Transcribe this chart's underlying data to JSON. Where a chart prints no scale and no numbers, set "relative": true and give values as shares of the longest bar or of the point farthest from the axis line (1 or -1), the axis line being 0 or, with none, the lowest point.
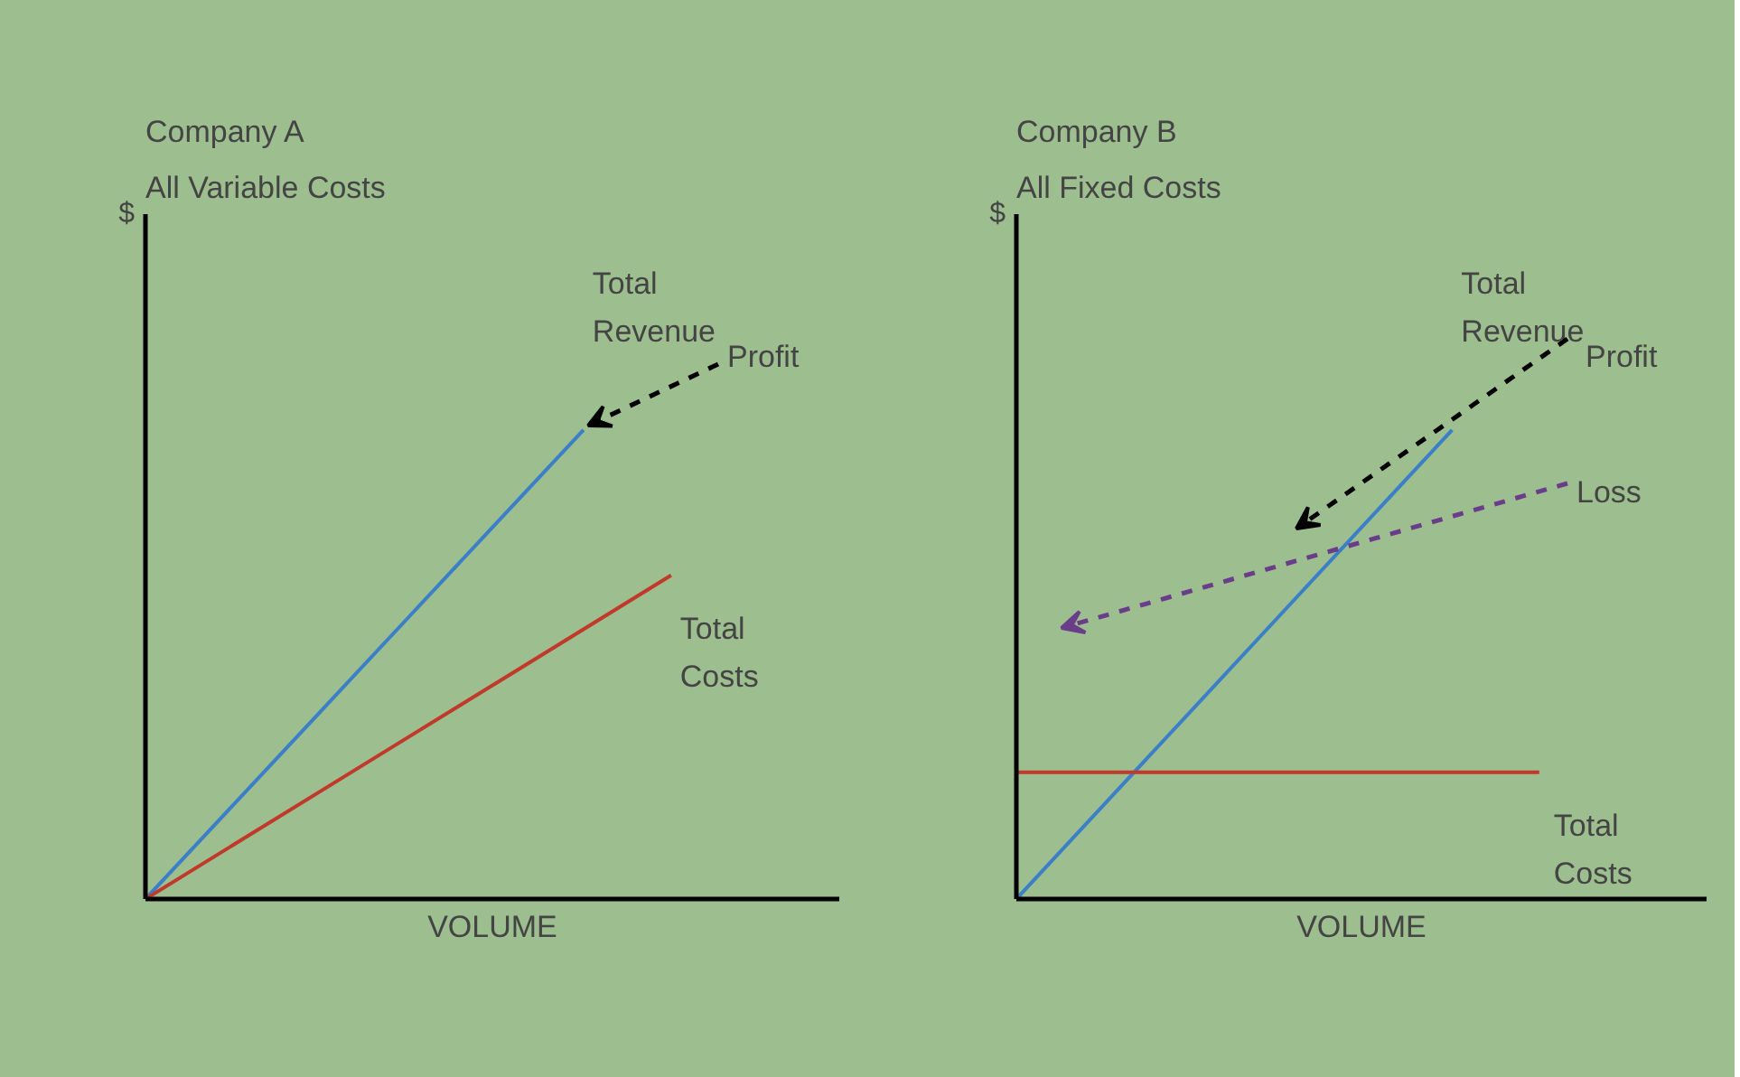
{
  "chart_data": [
    {
      "type": "line",
      "title": "Company A",
      "subtitle": "All Variable Costs",
      "xlabel": "VOLUME",
      "ylabel": "$",
      "relative": true,
      "tick_labels": false,
      "grid": false,
      "legend": false,
      "categories": [
        null,
        null,
        null,
        null,
        null,
        null,
        null
      ],
      "series": [
        {
          "name": "Total Revenue",
          "color": "#3a7fc8",
          "values": [
            0,
            0.2,
            0.4,
            0.6,
            0.8,
            1.0,
            null
          ]
        },
        {
          "name": "Total Costs",
          "color": "#c0392b",
          "values": [
            0,
            0.115,
            0.23,
            0.345,
            0.46,
            0.575,
            0.69
          ]
        }
      ],
      "annotations": [
        "Profit"
      ]
    },
    {
      "type": "line",
      "title": "Company B",
      "subtitle": "All Fixed Costs",
      "xlabel": "VOLUME",
      "ylabel": "$",
      "relative": true,
      "tick_labels": false,
      "grid": false,
      "legend": false,
      "categories": [
        null,
        null,
        null,
        null,
        null,
        null,
        null
      ],
      "series": [
        {
          "name": "Total Revenue",
          "color": "#3a7fc8",
          "values": [
            0,
            0.2,
            0.4,
            0.6,
            0.8,
            1.0,
            null
          ]
        },
        {
          "name": "Total Costs",
          "color": "#c0392b",
          "values": [
            0.27,
            0.27,
            0.27,
            0.27,
            0.27,
            0.27,
            0.27
          ]
        }
      ],
      "annotations": [
        "Profit",
        "Loss"
      ]
    }
  ]
}
